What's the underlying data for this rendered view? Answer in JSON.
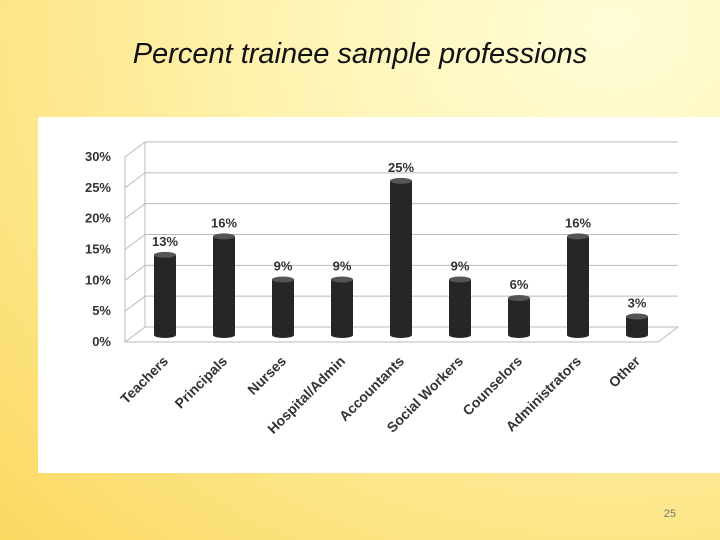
{
  "title": "Percent trainee sample professions",
  "page_number": 25,
  "chart_data": {
    "type": "bar",
    "categories": [
      "Teachers",
      "Principals",
      "Nurses",
      "Hospital/Admin",
      "Accountants",
      "Social Workers",
      "Counselors",
      "Administrators",
      "Other"
    ],
    "values": [
      13,
      16,
      9,
      9,
      25,
      9,
      6,
      16,
      3
    ],
    "value_labels": [
      "13%",
      "16%",
      "9%",
      "9%",
      "25%",
      "9%",
      "6%",
      "16%",
      "3%"
    ],
    "color": "#262626",
    "ylim": [
      0,
      30
    ],
    "yticks": [
      {
        "value": 0,
        "label": "0%"
      },
      {
        "value": 5,
        "label": "5%"
      },
      {
        "value": 10,
        "label": "10%"
      },
      {
        "value": 15,
        "label": "15%"
      },
      {
        "value": 20,
        "label": "20%"
      },
      {
        "value": 25,
        "label": "25%"
      },
      {
        "value": 30,
        "label": "30%"
      }
    ],
    "grid": true
  }
}
